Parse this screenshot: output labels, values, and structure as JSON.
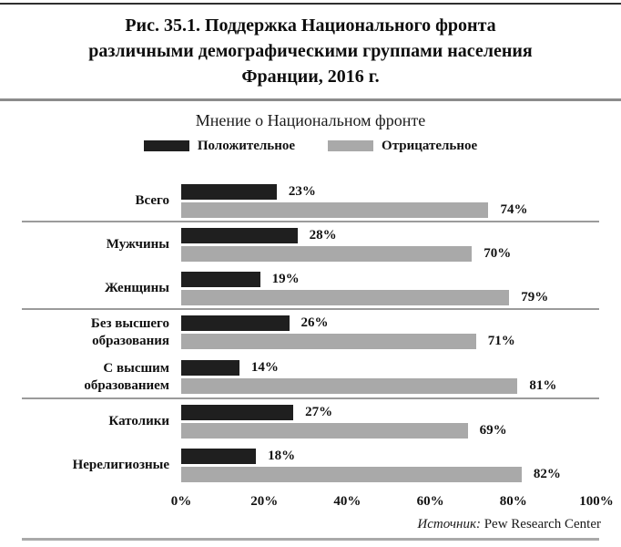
{
  "figure": {
    "title_lines": [
      "Рис. 35.1. Поддержка Национального фронта",
      "различными демографическими группами населения",
      "Франции, 2016 г."
    ],
    "subtitle": "Мнение о Национальном фронте",
    "source_prefix": "Источник:",
    "source_text": "Pew Research Center"
  },
  "colors": {
    "positive": "#1f1f1f",
    "negative": "#a9a9a9",
    "separator": "#9b9b9b"
  },
  "chart_data": {
    "type": "bar",
    "orientation": "horizontal",
    "title": "Мнение о Национальном фронте",
    "categories": [
      "Всего",
      "Мужчины",
      "Женщины",
      "Без высшего образования",
      "С высшим образованием",
      "Католики",
      "Нерелигиозные"
    ],
    "category_lines": [
      [
        "Всего"
      ],
      [
        "Мужчины"
      ],
      [
        "Женщины"
      ],
      [
        "Без высшего",
        "образования"
      ],
      [
        "С высшим",
        "образованием"
      ],
      [
        "Католики"
      ],
      [
        "Нерелигиозные"
      ]
    ],
    "groups": [
      [
        0
      ],
      [
        1,
        2
      ],
      [
        3,
        4
      ],
      [
        5,
        6
      ]
    ],
    "series": [
      {
        "name": "Положительное",
        "color": "#1f1f1f",
        "values": [
          23,
          28,
          19,
          26,
          14,
          27,
          18
        ]
      },
      {
        "name": "Отрицательное",
        "color": "#a9a9a9",
        "values": [
          74,
          70,
          79,
          71,
          81,
          69,
          82
        ]
      }
    ],
    "value_suffix": "%",
    "x_ticks": [
      "0%",
      "20%",
      "40%",
      "60%",
      "80%",
      "100%"
    ],
    "xlim": [
      0,
      100
    ],
    "legend": [
      "Положительное",
      "Отрицательное"
    ],
    "legend_position": "top",
    "grid": false
  }
}
